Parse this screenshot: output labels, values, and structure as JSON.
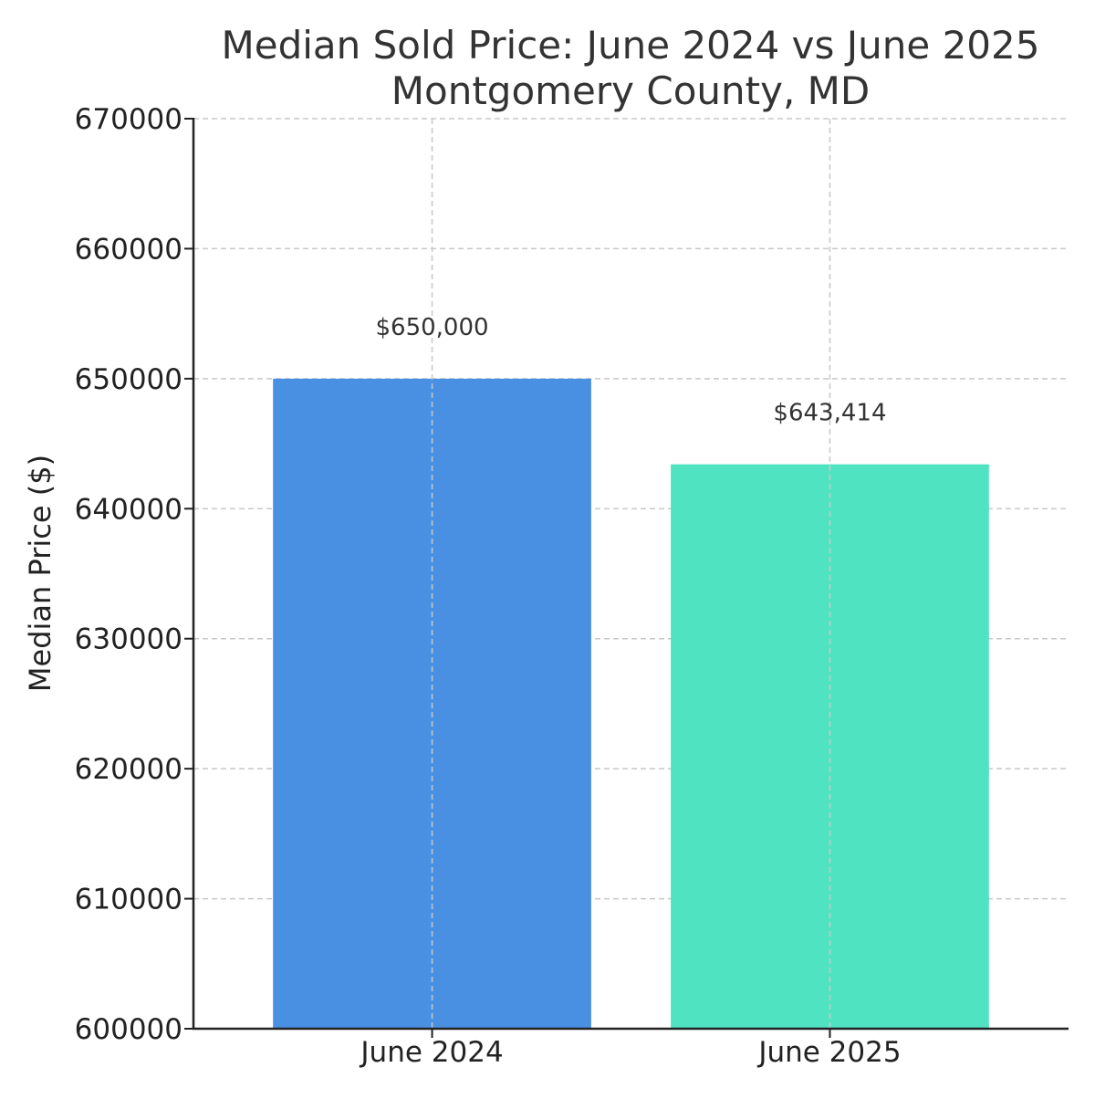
{
  "chart_data": {
    "type": "bar",
    "title": "Median Sold Price: June 2024 vs June 2025",
    "subtitle": "Montgomery County, MD",
    "xlabel": "",
    "ylabel": "Median Price ($)",
    "categories": [
      "June 2024",
      "June 2025"
    ],
    "values": [
      650000,
      643414
    ],
    "data_labels": [
      "$650,000",
      "$643,414"
    ],
    "bar_colors": [
      "#4a90e2",
      "#50e3c2"
    ],
    "ylim": [
      600000,
      670000
    ],
    "yticks": [
      600000,
      610000,
      620000,
      630000,
      640000,
      650000,
      660000,
      670000
    ],
    "ytick_labels": [
      "600000",
      "610000",
      "620000",
      "630000",
      "640000",
      "650000",
      "660000",
      "670000"
    ],
    "grid": true,
    "legend": false
  }
}
